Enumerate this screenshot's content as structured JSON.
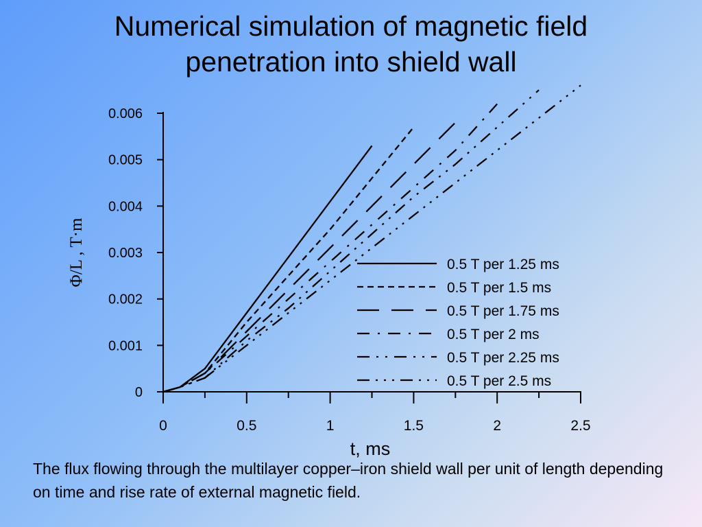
{
  "slide": {
    "title_line1": "Numerical simulation of magnetic field",
    "title_line2": "penetration into shield wall",
    "caption": "The flux flowing through the multilayer copper–iron shield wall per unit of length depending on time and rise rate of external magnetic field."
  },
  "chart_data": {
    "type": "line",
    "title": "",
    "xlabel": "t, ms",
    "ylabel": "Φ/L , T·m",
    "xlim": [
      0,
      2.5
    ],
    "ylim": [
      0,
      0.006
    ],
    "xticks": [
      0,
      0.5,
      1,
      1.5,
      2,
      2.5
    ],
    "xtick_labels": [
      "0",
      "0.5",
      "1",
      "1.5",
      "2",
      "2.5"
    ],
    "yticks": [
      0,
      0.001,
      0.002,
      0.003,
      0.004,
      0.005,
      0.006
    ],
    "ytick_labels": [
      "0",
      "0.001",
      "0.002",
      "0.003",
      "0.004",
      "0.005",
      "0.006"
    ],
    "grid": false,
    "legend_position": "center-right",
    "series": [
      {
        "name": "0.5 T per 1.25 ms",
        "style": "solid",
        "x": [
          0,
          0.1,
          0.25,
          0.5,
          0.75,
          1.0,
          1.25
        ],
        "y": [
          0,
          0.0001,
          0.0005,
          0.0017,
          0.0029,
          0.0041,
          0.0053
        ]
      },
      {
        "name": "0.5 T per 1.5 ms",
        "style": "dashed",
        "x": [
          0,
          0.1,
          0.25,
          0.5,
          0.75,
          1.0,
          1.25,
          1.5
        ],
        "y": [
          0,
          0.0001,
          0.0004,
          0.0015,
          0.0025,
          0.0035,
          0.0046,
          0.0057
        ]
      },
      {
        "name": "0.5 T per 1.75 ms",
        "style": "long-dash",
        "x": [
          0,
          0.1,
          0.25,
          0.5,
          0.75,
          1.0,
          1.25,
          1.5,
          1.75
        ],
        "y": [
          0,
          0.0001,
          0.0004,
          0.0013,
          0.0022,
          0.0031,
          0.004,
          0.0049,
          0.0058
        ]
      },
      {
        "name": "0.5 T per 2 ms",
        "style": "dash-dot",
        "x": [
          0,
          0.1,
          0.25,
          0.5,
          0.75,
          1.0,
          1.25,
          1.5,
          1.75,
          2.0
        ],
        "y": [
          0,
          0.0001,
          0.0004,
          0.0012,
          0.002,
          0.0028,
          0.0036,
          0.0044,
          0.0052,
          0.0062
        ]
      },
      {
        "name": "0.5 T per 2.25 ms",
        "style": "dash-dot-dot",
        "x": [
          0,
          0.1,
          0.25,
          0.5,
          0.75,
          1.0,
          1.25,
          1.5,
          1.75,
          2.0,
          2.25
        ],
        "y": [
          0,
          0.0001,
          0.0003,
          0.0011,
          0.0018,
          0.0026,
          0.0034,
          0.0042,
          0.0049,
          0.0057,
          0.0065
        ]
      },
      {
        "name": "0.5 T per 2.5 ms",
        "style": "dash-dot-dot-dot",
        "x": [
          0,
          0.1,
          0.25,
          0.5,
          0.75,
          1.0,
          1.25,
          1.5,
          1.75,
          2.0,
          2.25,
          2.5
        ],
        "y": [
          0,
          0.0001,
          0.0003,
          0.001,
          0.0017,
          0.0024,
          0.0031,
          0.0038,
          0.0045,
          0.0052,
          0.0059,
          0.0066
        ]
      }
    ]
  }
}
